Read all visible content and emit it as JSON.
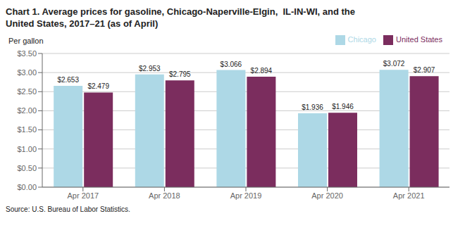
{
  "chart_data": {
    "type": "bar",
    "title": "Chart 1. Average prices for gasoline, Chicago-Naperville-Elgin,  IL-IN-WI, and the",
    "subtitle": "United States, 2017–21 (as of April)",
    "ylabel": "Per gallon",
    "annotations": [
      "Source: U.S. Bureau of Labor Statistics."
    ],
    "categories": [
      "Apr 2017",
      "Apr 2018",
      "Apr 2019",
      "Apr 2020",
      "Apr 2021"
    ],
    "series": [
      {
        "name": "Chicago",
        "color": "#ADD8E6",
        "values": [
          2.653,
          2.953,
          3.066,
          1.936,
          3.072
        ],
        "value_labels": [
          "$2.653",
          "$2.953",
          "$3.066",
          "$1.936",
          "$3.072"
        ]
      },
      {
        "name": "United States",
        "color": "#7B2D5E",
        "values": [
          2.479,
          2.795,
          2.894,
          1.946,
          2.907
        ],
        "value_labels": [
          "$2.479",
          "$2.795",
          "$2.894",
          "$1.946",
          "$2.907"
        ]
      }
    ],
    "ylim": [
      0,
      3.5
    ],
    "yticks": [
      {
        "value": 0.0,
        "label": "$0.00"
      },
      {
        "value": 0.5,
        "label": "$0.50"
      },
      {
        "value": 1.0,
        "label": "$1.00"
      },
      {
        "value": 1.5,
        "label": "$1.50"
      },
      {
        "value": 2.0,
        "label": "$2.00"
      },
      {
        "value": 2.5,
        "label": "$2.50"
      },
      {
        "value": 3.0,
        "label": "$3.00"
      },
      {
        "value": 3.5,
        "label": "$3.50"
      }
    ],
    "grid": true,
    "legend": "upper right",
    "data_labels": true
  }
}
